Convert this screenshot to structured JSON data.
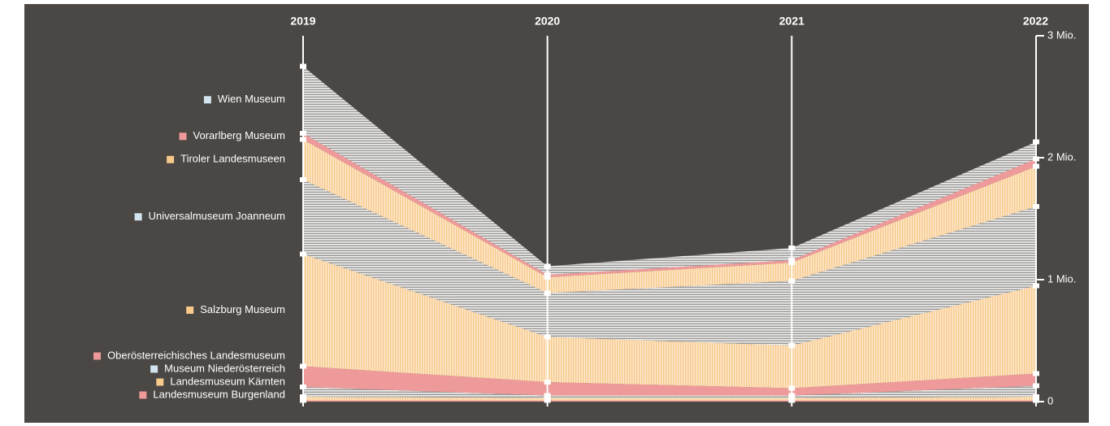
{
  "chart_data": {
    "type": "stacked_area",
    "categories": [
      "2019",
      "2020",
      "2021",
      "2022"
    ],
    "series": [
      {
        "name": "Landesmuseum Burgenland",
        "color": "#ef9a9a",
        "values": [
          0.01,
          0.01,
          0.01,
          0.01
        ]
      },
      {
        "name": "Landesmuseum Kärnten",
        "color": "#f7c98b",
        "values": [
          0.03,
          0.02,
          0.02,
          0.03
        ]
      },
      {
        "name": "Museum Niederösterreich",
        "color": "#d2e4ee",
        "values": [
          0.08,
          0.02,
          0.02,
          0.09
        ]
      },
      {
        "name": "Oberösterreichisches Landesmuseum",
        "color": "#ef9a9a",
        "values": [
          0.17,
          0.11,
          0.06,
          0.1
        ]
      },
      {
        "name": "Salzburg Museum",
        "color": "#f7c98b",
        "values": [
          0.92,
          0.37,
          0.35,
          0.72
        ]
      },
      {
        "name": "Universalmuseum Joanneum",
        "color": "#d2e4ee",
        "values": [
          0.61,
          0.36,
          0.53,
          0.65
        ]
      },
      {
        "name": "Tiroler Landesmuseen",
        "color": "#f7c98b",
        "values": [
          0.33,
          0.13,
          0.15,
          0.33
        ]
      },
      {
        "name": "Vorarlberg Museum",
        "color": "#ef9a9a",
        "values": [
          0.05,
          0.02,
          0.02,
          0.06
        ]
      },
      {
        "name": "Wien Museum",
        "color": "#d2e4ee",
        "values": [
          0.55,
          0.07,
          0.1,
          0.14
        ]
      }
    ],
    "ylim": [
      0,
      3
    ],
    "yticks": [
      {
        "value": 0,
        "label": "0"
      },
      {
        "value": 1,
        "label": "1 Mio."
      },
      {
        "value": 2,
        "label": "2 Mio."
      },
      {
        "value": 3,
        "label": "3 Mio."
      }
    ]
  }
}
